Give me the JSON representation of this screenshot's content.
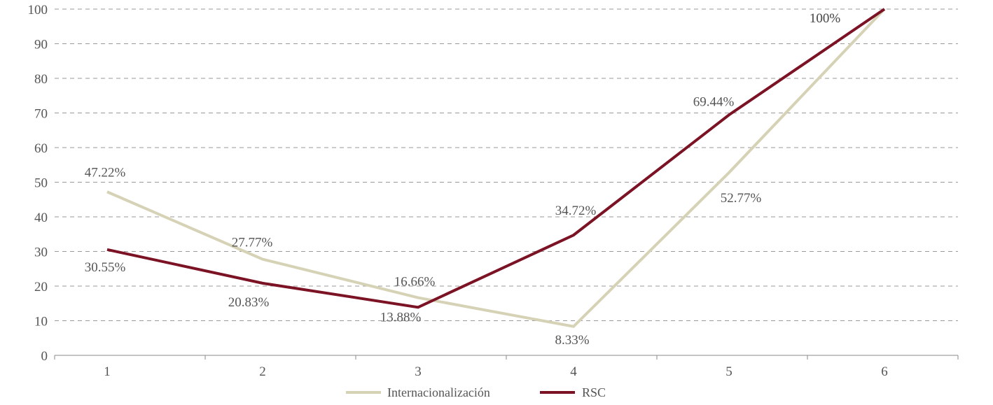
{
  "chart_data": {
    "type": "line",
    "categories": [
      "1",
      "2",
      "3",
      "4",
      "5",
      "6"
    ],
    "ylim": [
      0,
      100
    ],
    "yticks": [
      "0",
      "10",
      "20",
      "30",
      "40",
      "50",
      "60",
      "70",
      "80",
      "90",
      "100"
    ],
    "grid": true,
    "legend_position": "bottom",
    "series": [
      {
        "name": "Internacionalización",
        "color": "#d6d2b6",
        "values": [
          47.22,
          27.77,
          16.66,
          8.33,
          52.77,
          100
        ],
        "labels": [
          "47.22%",
          "27.77%",
          "16.66%",
          "8.33%",
          "52.77%",
          "100%"
        ]
      },
      {
        "name": "RSC",
        "color": "#7b1325",
        "values": [
          30.55,
          20.83,
          13.88,
          34.72,
          69.44,
          100
        ],
        "labels": [
          "30.55%",
          "20.83%",
          "13.88%",
          "34.72%",
          "69.44%",
          "100%"
        ]
      }
    ]
  }
}
